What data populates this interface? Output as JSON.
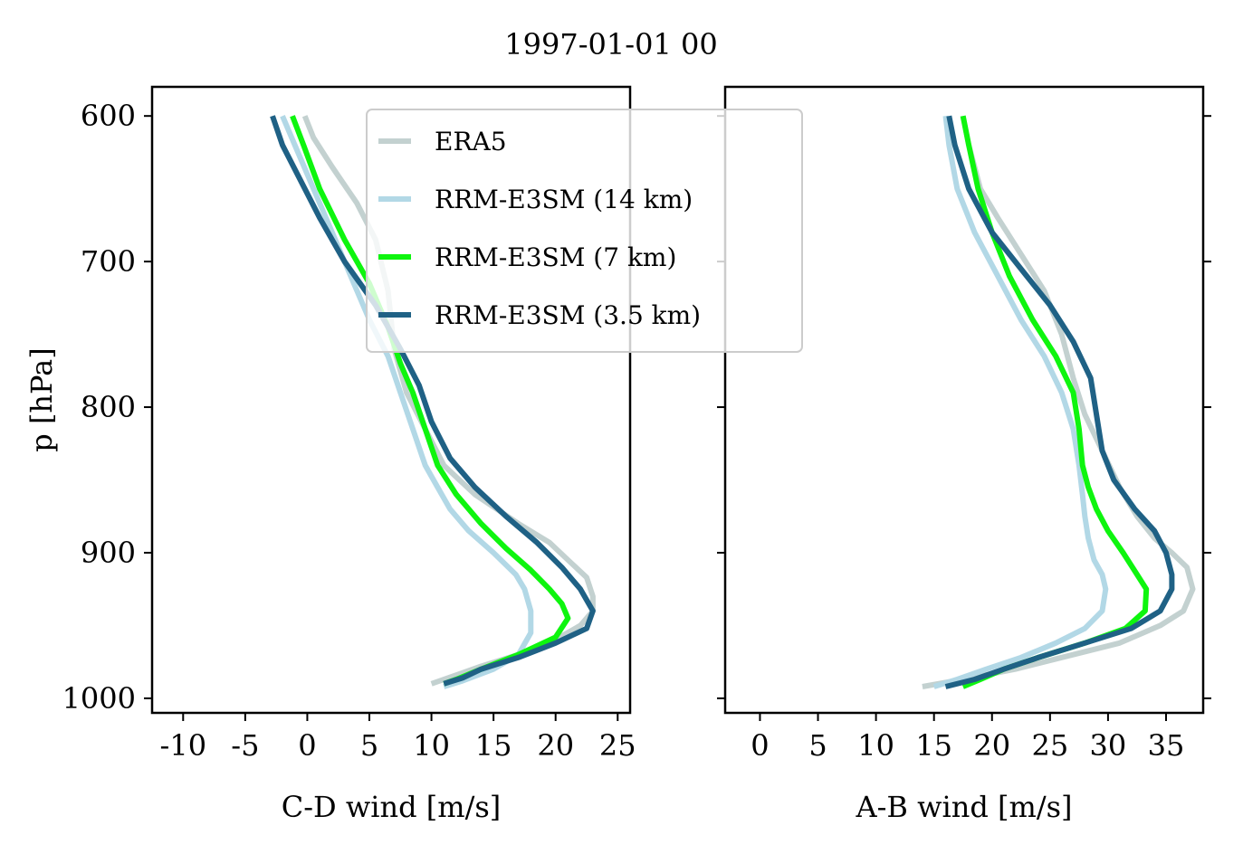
{
  "suptitle": "1997-01-01 00",
  "legend": {
    "placement": "upper center of left panel",
    "entries": [
      "ERA5",
      "RRM-E3SM (14 km)",
      "RRM-E3SM (7 km)",
      "RRM-E3SM (3.5 km)"
    ]
  },
  "colors": {
    "ERA5": "#c3d1d0",
    "RRM-E3SM (14 km)": "#b2d8e6",
    "RRM-E3SM (7 km)": "#0ef50e",
    "RRM-E3SM (3.5 km)": "#1f6185"
  },
  "chart_data": [
    {
      "type": "line",
      "panel": "left",
      "xlabel": "C-D wind [m/s]",
      "ylabel": "p [hPa]",
      "xlim": [
        -12.5,
        26
      ],
      "ylim": [
        1010,
        580
      ],
      "y_inverted": true,
      "xticks": [
        -10,
        -5,
        0,
        5,
        10,
        15,
        20,
        25
      ],
      "xticklabels": [
        "-10",
        "-5",
        "0",
        "5",
        "10",
        "15",
        "20",
        "25"
      ],
      "yticks": [
        600,
        700,
        800,
        900,
        1000
      ],
      "yticklabels": [
        "600",
        "700",
        "800",
        "900",
        "1000"
      ],
      "series": [
        {
          "name": "ERA5",
          "x": [
            -0.2,
            0.5,
            2,
            4,
            5.5,
            6.5,
            7,
            8,
            9.5,
            11,
            13.5,
            17,
            19.5,
            21,
            22.5,
            23,
            23,
            22,
            19.5,
            17,
            14,
            12,
            10
          ],
          "p": [
            600,
            615,
            635,
            660,
            685,
            720,
            760,
            790,
            815,
            840,
            860,
            880,
            893,
            905,
            917,
            930,
            940,
            950,
            962,
            970,
            978,
            984,
            990
          ]
        },
        {
          "name": "RRM-E3SM (14 km)",
          "x": [
            -2,
            -1,
            0.5,
            2,
            3.5,
            5,
            6.5,
            7.5,
            8.5,
            9.5,
            10.5,
            11.5,
            13,
            15,
            16.8,
            17.5,
            18,
            18,
            17,
            15,
            12.5,
            11
          ],
          "p": [
            600,
            620,
            650,
            680,
            710,
            740,
            765,
            790,
            815,
            840,
            855,
            870,
            885,
            900,
            915,
            925,
            940,
            955,
            970,
            980,
            988,
            992
          ]
        },
        {
          "name": "RRM-E3SM (7 km)",
          "x": [
            -1.2,
            -0.3,
            1,
            3,
            5,
            6.5,
            7.5,
            8.5,
            9.5,
            10.5,
            12,
            14,
            16,
            18,
            19.5,
            20.5,
            21,
            20,
            17,
            14,
            12,
            11
          ],
          "p": [
            600,
            620,
            650,
            685,
            715,
            745,
            770,
            790,
            815,
            840,
            860,
            880,
            897,
            912,
            925,
            935,
            945,
            958,
            970,
            980,
            987,
            990
          ]
        },
        {
          "name": "RRM-E3SM (3.5 km)",
          "x": [
            -2.8,
            -2,
            -0.5,
            1,
            3,
            5.5,
            7.5,
            9,
            10,
            11.5,
            13.5,
            16,
            18.5,
            20.5,
            22,
            23,
            22.5,
            20,
            17,
            14,
            12.5,
            11
          ],
          "p": [
            600,
            620,
            645,
            670,
            700,
            730,
            760,
            785,
            810,
            835,
            855,
            875,
            893,
            910,
            925,
            940,
            952,
            962,
            972,
            980,
            986,
            990
          ]
        }
      ]
    },
    {
      "type": "line",
      "panel": "right",
      "xlabel": "A-B wind [m/s]",
      "ylabel": "",
      "xlim": [
        -3,
        38.2
      ],
      "ylim": [
        1010,
        580
      ],
      "y_inverted": true,
      "xticks": [
        0,
        5,
        10,
        15,
        20,
        25,
        30,
        35
      ],
      "xticklabels": [
        "0",
        "5",
        "10",
        "15",
        "20",
        "25",
        "30",
        "35"
      ],
      "yticks": [
        600,
        700,
        800,
        900,
        1000
      ],
      "yticklabels": [],
      "series": [
        {
          "name": "ERA5",
          "x": [
            17.5,
            18,
            19,
            20.5,
            22.5,
            24.5,
            26,
            27,
            28,
            29.5,
            31,
            32.5,
            34,
            35.5,
            36.8,
            37.3,
            36.5,
            34.5,
            31,
            26,
            22,
            17.5,
            14
          ],
          "p": [
            600,
            620,
            650,
            670,
            695,
            720,
            750,
            780,
            805,
            830,
            855,
            875,
            890,
            900,
            910,
            925,
            940,
            950,
            962,
            972,
            980,
            987,
            992
          ]
        },
        {
          "name": "RRM-E3SM (14 km)",
          "x": [
            16,
            16.3,
            17,
            18.5,
            20.5,
            22.5,
            24.5,
            26,
            27,
            27.5,
            27.8,
            28,
            28.3,
            28.8,
            29.5,
            29.8,
            29.5,
            28,
            25.5,
            22.5,
            19.5,
            17,
            15
          ],
          "p": [
            600,
            620,
            650,
            680,
            710,
            740,
            765,
            790,
            815,
            840,
            860,
            875,
            890,
            905,
            915,
            925,
            940,
            952,
            962,
            972,
            980,
            987,
            992
          ]
        },
        {
          "name": "RRM-E3SM (7 km)",
          "x": [
            17.5,
            18,
            18.8,
            20,
            21.5,
            23.5,
            25.5,
            27,
            27.5,
            27.8,
            28.3,
            29,
            30,
            31.3,
            32.5,
            33.3,
            33.2,
            31.5,
            28,
            24,
            21,
            19,
            17.5
          ],
          "p": [
            600,
            620,
            650,
            680,
            710,
            740,
            765,
            790,
            815,
            840,
            855,
            870,
            885,
            900,
            915,
            925,
            940,
            952,
            962,
            972,
            980,
            987,
            992
          ]
        },
        {
          "name": "RRM-E3SM (3.5 km)",
          "x": [
            16.3,
            16.8,
            18,
            20,
            22.5,
            25,
            27,
            28.5,
            29,
            29.5,
            30.5,
            32.3,
            34,
            35,
            35.5,
            35.5,
            34.5,
            32,
            28,
            24,
            21,
            18.5,
            16
          ],
          "p": [
            600,
            620,
            650,
            680,
            705,
            730,
            755,
            780,
            805,
            830,
            850,
            870,
            885,
            900,
            915,
            925,
            940,
            952,
            962,
            972,
            980,
            987,
            992
          ]
        }
      ]
    }
  ]
}
